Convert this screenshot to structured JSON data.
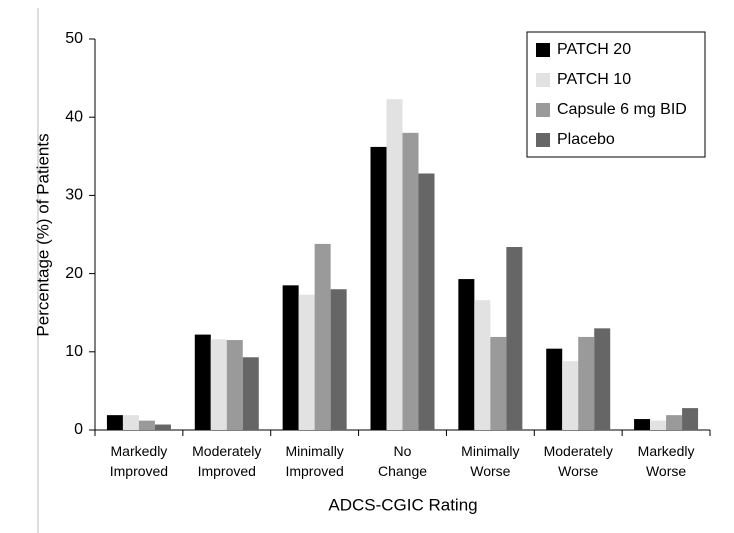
{
  "chart_data": {
    "type": "bar",
    "x_label": "ADCS-CGIC Rating",
    "y_label": "Percentage (%) of Patients",
    "categories": [
      "Markedly Improved",
      "Moderately Improved",
      "Minimally Improved",
      "No Change",
      "Minimally Worse",
      "Moderately Worse",
      "Markedly Worse"
    ],
    "series": [
      {
        "name": "PATCH 20",
        "color": "#000000",
        "values": [
          1.9,
          12.2,
          18.5,
          36.2,
          19.3,
          10.4,
          1.4
        ]
      },
      {
        "name": "PATCH 10",
        "color": "#e2e2e2",
        "values": [
          1.9,
          11.6,
          17.3,
          42.3,
          16.6,
          8.8,
          1.2
        ]
      },
      {
        "name": "Capsule 6 mg BID",
        "color": "#9a9a9a",
        "values": [
          1.2,
          11.5,
          23.8,
          38.0,
          11.9,
          11.9,
          1.9
        ]
      },
      {
        "name": "Placebo",
        "color": "#666666",
        "values": [
          0.7,
          9.3,
          18.0,
          32.8,
          23.4,
          13.0,
          2.8
        ]
      }
    ],
    "ylim": [
      0,
      50
    ],
    "yticks": [
      0,
      10,
      20,
      30,
      40,
      50
    ],
    "grid": false,
    "legend": "top-right"
  }
}
